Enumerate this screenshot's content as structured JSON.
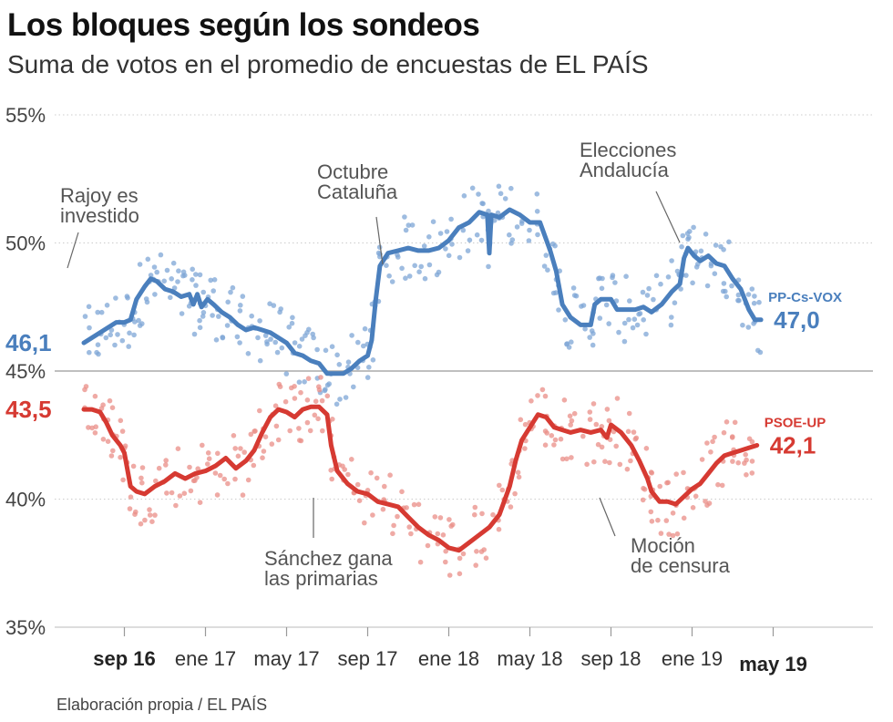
{
  "title": "Los bloques según los sondeos",
  "subtitle": "Suma de votos en el promedio de encuestas de EL PAÍS",
  "source": "Elaboración propia / EL PAÍS",
  "colors": {
    "blue": "#4a7fbd",
    "red": "#d63a32",
    "blue_dot": "#7ea6d6",
    "red_dot": "#ea8d87",
    "grid": "#cccccc",
    "ref_line": "#aaaaaa"
  },
  "annotations": [
    {
      "lines": [
        "Rajoy es",
        "investido"
      ]
    },
    {
      "lines": [
        "Octubre",
        "Cataluña"
      ]
    },
    {
      "lines": [
        "Elecciones",
        "Andalucía"
      ]
    },
    {
      "lines": [
        "Sánchez gana",
        "las primarias"
      ]
    },
    {
      "lines": [
        "Moción",
        "de censura"
      ]
    }
  ],
  "chart_data": {
    "type": "line",
    "title": "Los bloques según los sondeos",
    "subtitle": "Suma de votos en el promedio de encuestas de EL PAÍS",
    "xlabel": "",
    "ylabel": "",
    "x_unit": "months since 2016-01",
    "xlim": [
      6,
      42
    ],
    "ylim": [
      35,
      55
    ],
    "y_ticks": [
      {
        "value": 35,
        "label": "35%"
      },
      {
        "value": 40,
        "label": "40%"
      },
      {
        "value": 45,
        "label": "45%"
      },
      {
        "value": 50,
        "label": "50%"
      },
      {
        "value": 55,
        "label": "55%"
      }
    ],
    "reference_line": 45,
    "x_ticks": [
      {
        "value": 8,
        "label": "sep 16",
        "bold": true
      },
      {
        "value": 12,
        "label": "ene 17",
        "bold": false
      },
      {
        "value": 16,
        "label": "may 17",
        "bold": false
      },
      {
        "value": 20,
        "label": "sep 17",
        "bold": false
      },
      {
        "value": 24,
        "label": "ene 18",
        "bold": false
      },
      {
        "value": 28,
        "label": "may 18",
        "bold": false
      },
      {
        "value": 32,
        "label": "sep 18",
        "bold": false
      },
      {
        "value": 36,
        "label": "ene 19",
        "bold": false
      },
      {
        "value": 40,
        "label": "may 19",
        "bold": true
      }
    ],
    "series": [
      {
        "name": "PP-Cs-VOX",
        "start_label": "46,1",
        "end_label": "47,0",
        "points": [
          [
            6.0,
            46.1
          ],
          [
            6.4,
            46.3
          ],
          [
            6.8,
            46.5
          ],
          [
            7.2,
            46.7
          ],
          [
            7.6,
            46.9
          ],
          [
            8.0,
            46.9
          ],
          [
            8.3,
            47.0
          ],
          [
            8.6,
            47.8
          ],
          [
            9.0,
            48.3
          ],
          [
            9.3,
            48.6
          ],
          [
            9.6,
            48.5
          ],
          [
            10.0,
            48.2
          ],
          [
            10.4,
            48.1
          ],
          [
            10.8,
            47.9
          ],
          [
            11.2,
            48.0
          ],
          [
            11.4,
            47.6
          ],
          [
            11.6,
            48.0
          ],
          [
            11.8,
            47.5
          ],
          [
            12.1,
            47.8
          ],
          [
            12.4,
            47.6
          ],
          [
            12.8,
            47.3
          ],
          [
            13.2,
            47.1
          ],
          [
            13.6,
            46.8
          ],
          [
            14.0,
            46.6
          ],
          [
            14.4,
            46.7
          ],
          [
            14.8,
            46.6
          ],
          [
            15.2,
            46.5
          ],
          [
            15.6,
            46.3
          ],
          [
            16.0,
            46.1
          ],
          [
            16.4,
            45.7
          ],
          [
            16.8,
            45.6
          ],
          [
            17.2,
            45.4
          ],
          [
            17.6,
            45.3
          ],
          [
            18.0,
            44.9
          ],
          [
            18.4,
            44.9
          ],
          [
            18.8,
            44.9
          ],
          [
            19.2,
            45.1
          ],
          [
            19.6,
            45.4
          ],
          [
            20.0,
            45.6
          ],
          [
            20.2,
            46.2
          ],
          [
            20.4,
            47.8
          ],
          [
            20.6,
            49.1
          ],
          [
            21.0,
            49.6
          ],
          [
            21.5,
            49.7
          ],
          [
            22.0,
            49.8
          ],
          [
            22.5,
            49.7
          ],
          [
            23.0,
            49.7
          ],
          [
            23.5,
            49.8
          ],
          [
            24.0,
            50.1
          ],
          [
            24.5,
            50.6
          ],
          [
            25.0,
            50.8
          ],
          [
            25.5,
            51.2
          ],
          [
            25.9,
            51.1
          ],
          [
            26.0,
            49.6
          ],
          [
            26.1,
            51.1
          ],
          [
            26.5,
            51.0
          ],
          [
            27.0,
            51.3
          ],
          [
            27.5,
            51.1
          ],
          [
            28.0,
            50.8
          ],
          [
            28.5,
            50.8
          ],
          [
            29.0,
            49.7
          ],
          [
            29.3,
            48.9
          ],
          [
            29.6,
            47.6
          ],
          [
            30.0,
            47.1
          ],
          [
            30.5,
            46.8
          ],
          [
            31.0,
            46.8
          ],
          [
            31.2,
            47.6
          ],
          [
            31.5,
            47.8
          ],
          [
            32.0,
            47.8
          ],
          [
            32.3,
            47.4
          ],
          [
            32.8,
            47.4
          ],
          [
            33.2,
            47.4
          ],
          [
            33.6,
            47.5
          ],
          [
            34.0,
            47.3
          ],
          [
            34.5,
            47.6
          ],
          [
            35.0,
            48.1
          ],
          [
            35.4,
            48.4
          ],
          [
            35.6,
            49.4
          ],
          [
            35.8,
            49.8
          ],
          [
            36.1,
            49.5
          ],
          [
            36.4,
            49.3
          ],
          [
            36.8,
            49.5
          ],
          [
            37.2,
            49.2
          ],
          [
            37.6,
            49.1
          ],
          [
            38.0,
            48.6
          ],
          [
            38.4,
            48.2
          ],
          [
            38.8,
            47.4
          ],
          [
            39.1,
            47.0
          ],
          [
            39.4,
            47.0
          ]
        ]
      },
      {
        "name": "PSOE-UP",
        "start_label": "43,5",
        "end_label": "42,1",
        "points": [
          [
            6.0,
            43.5
          ],
          [
            6.4,
            43.5
          ],
          [
            6.8,
            43.4
          ],
          [
            7.1,
            43.0
          ],
          [
            7.4,
            42.5
          ],
          [
            7.8,
            42.1
          ],
          [
            8.0,
            41.8
          ],
          [
            8.3,
            40.5
          ],
          [
            8.6,
            40.3
          ],
          [
            9.0,
            40.2
          ],
          [
            9.5,
            40.5
          ],
          [
            10.0,
            40.7
          ],
          [
            10.5,
            41.0
          ],
          [
            11.0,
            40.8
          ],
          [
            11.5,
            41.0
          ],
          [
            12.0,
            41.1
          ],
          [
            12.5,
            41.3
          ],
          [
            13.0,
            41.6
          ],
          [
            13.5,
            41.2
          ],
          [
            14.0,
            41.5
          ],
          [
            14.4,
            41.9
          ],
          [
            14.8,
            42.6
          ],
          [
            15.2,
            43.2
          ],
          [
            15.6,
            43.5
          ],
          [
            16.0,
            43.4
          ],
          [
            16.4,
            43.2
          ],
          [
            16.8,
            43.5
          ],
          [
            17.2,
            43.6
          ],
          [
            17.6,
            43.6
          ],
          [
            18.0,
            43.3
          ],
          [
            18.2,
            42.1
          ],
          [
            18.5,
            41.1
          ],
          [
            19.0,
            40.6
          ],
          [
            19.5,
            40.3
          ],
          [
            20.0,
            40.2
          ],
          [
            20.5,
            39.9
          ],
          [
            21.0,
            39.8
          ],
          [
            21.5,
            39.7
          ],
          [
            22.0,
            39.3
          ],
          [
            22.5,
            38.9
          ],
          [
            23.0,
            38.6
          ],
          [
            23.5,
            38.4
          ],
          [
            24.0,
            38.1
          ],
          [
            24.5,
            38.0
          ],
          [
            25.0,
            38.3
          ],
          [
            25.5,
            38.6
          ],
          [
            26.0,
            38.9
          ],
          [
            26.5,
            39.4
          ],
          [
            27.0,
            40.5
          ],
          [
            27.3,
            41.5
          ],
          [
            27.6,
            42.3
          ],
          [
            28.0,
            42.8
          ],
          [
            28.4,
            43.3
          ],
          [
            28.8,
            43.2
          ],
          [
            29.2,
            42.8
          ],
          [
            29.6,
            42.7
          ],
          [
            30.0,
            42.6
          ],
          [
            30.5,
            42.7
          ],
          [
            31.0,
            42.6
          ],
          [
            31.5,
            42.7
          ],
          [
            31.8,
            42.4
          ],
          [
            32.0,
            42.9
          ],
          [
            32.5,
            42.6
          ],
          [
            33.0,
            42.1
          ],
          [
            33.4,
            41.5
          ],
          [
            33.8,
            40.8
          ],
          [
            34.0,
            40.3
          ],
          [
            34.4,
            39.9
          ],
          [
            34.8,
            39.9
          ],
          [
            35.2,
            39.8
          ],
          [
            35.6,
            40.1
          ],
          [
            36.0,
            40.4
          ],
          [
            36.4,
            40.6
          ],
          [
            36.8,
            41.0
          ],
          [
            37.2,
            41.4
          ],
          [
            37.6,
            41.7
          ],
          [
            38.0,
            41.8
          ],
          [
            38.4,
            41.9
          ],
          [
            38.8,
            42.0
          ],
          [
            39.2,
            42.1
          ]
        ]
      }
    ]
  }
}
